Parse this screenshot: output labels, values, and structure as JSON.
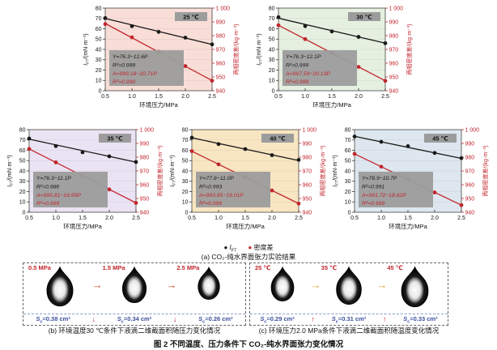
{
  "figure_caption": "图 2  不同温度、压力条件下 CO₂-纯水界面张力变化情况",
  "subfig_a_caption": "(a) CO₂-纯水界面张力实验结果",
  "legend": {
    "items": [
      {
        "marker": "●",
        "color": "#1a1a1a",
        "main": "I",
        "sub": "FT",
        "italic": true
      },
      {
        "marker": "●",
        "color": "#c2262d",
        "main": "密度差",
        "sub": "",
        "italic": false
      }
    ]
  },
  "chart_data": {
    "type": "line",
    "axes": {
      "xlabel": "环境压力/MPa",
      "ylabel_left": {
        "sym": "I",
        "sub": "FT",
        "rest": "/(mN·m⁻¹)"
      },
      "ylabel_right": "两相密度差/(kg·m⁻³)",
      "xlim": [
        0.5,
        2.5
      ],
      "xticks": [
        0.5,
        1.0,
        1.5,
        2.0,
        2.5
      ],
      "ylim_left": [
        0,
        80
      ],
      "yticks_left": [
        0,
        10,
        20,
        30,
        40,
        50,
        60,
        70,
        80
      ],
      "ylim_right": [
        940,
        1000
      ],
      "yticks_right": [
        940,
        950,
        960,
        970,
        980,
        990,
        1000
      ],
      "grid": true,
      "legend_position": "below"
    },
    "charts": [
      {
        "temp": "25 ℃",
        "bg": "#f9ded8",
        "x": [
          0.5,
          1.0,
          1.5,
          2.0,
          2.5
        ],
        "series": [
          {
            "name": "IFT",
            "axis": "left",
            "color": "#1a1a1a",
            "values": [
              70.3,
              62.5,
              57.0,
              51.4,
              44.9
            ],
            "fit": {
              "b": 76.3,
              "m": -12.6
            }
          },
          {
            "name": "密度差",
            "axis": "right",
            "color": "#c2262d",
            "values": [
              988.4,
              978.8,
              968.3,
              957.9,
              947.3
            ],
            "fit": {
              "b": 999.18,
              "m": -20.71
            }
          }
        ],
        "annotation": [
          {
            "text": "Y=76.3−12.6P",
            "color": "black"
          },
          {
            "text": "R²=0.999",
            "color": "black"
          },
          {
            "text": "A=999.18−20.71P",
            "color": "red"
          },
          {
            "text": "R²=0.990",
            "color": "red"
          }
        ]
      },
      {
        "temp": "30 ℃",
        "bg": "#e6f0e1",
        "x": [
          0.5,
          1.0,
          1.5,
          2.0,
          2.5
        ],
        "series": [
          {
            "name": "IFT",
            "axis": "left",
            "color": "#1a1a1a",
            "values": [
              71.2,
              62.6,
              57.4,
              52.1,
              46.0
            ],
            "fit": {
              "b": 76.3,
              "m": -12.1
            }
          },
          {
            "name": "密度差",
            "axis": "right",
            "color": "#c2262d",
            "values": [
              987.5,
              977.5,
              967.4,
              957.3,
              947.2
            ],
            "fit": {
              "b": 997.59,
              "m": -20.13
            }
          }
        ],
        "annotation": [
          {
            "text": "Y=76.3−12.1P",
            "color": "black"
          },
          {
            "text": "R²=0.999",
            "color": "black"
          },
          {
            "text": "A=997.59−20.13P",
            "color": "red"
          },
          {
            "text": "R²=0.999",
            "color": "red"
          }
        ]
      },
      {
        "temp": "35 ℃",
        "bg": "#eae3f3",
        "x": [
          0.5,
          1.0,
          1.5,
          2.0,
          2.5
        ],
        "series": [
          {
            "name": "IFT",
            "axis": "left",
            "color": "#1a1a1a",
            "values": [
              71.4,
              64.1,
              58.1,
              54.2,
              48.7
            ],
            "fit": {
              "b": 76.3,
              "m": -11.1
            }
          },
          {
            "name": "密度差",
            "axis": "right",
            "color": "#c2262d",
            "values": [
              986.0,
              976.2,
              966.4,
              956.6,
              946.8
            ],
            "fit": {
              "b": 995.81,
              "m": -19.59
            }
          }
        ],
        "annotation": [
          {
            "text": "Y=76.3−11.1P",
            "color": "black"
          },
          {
            "text": "R²=0.986",
            "color": "black"
          },
          {
            "text": "A=995.81−19.59P",
            "color": "red"
          },
          {
            "text": "R²=0.999",
            "color": "red"
          }
        ]
      },
      {
        "temp": "40 ℃",
        "bg": "#f8e6c2",
        "x": [
          0.5,
          1.0,
          1.5,
          2.0,
          2.5
        ],
        "series": [
          {
            "name": "IFT",
            "axis": "left",
            "color": "#1a1a1a",
            "values": [
              72.2,
              66.0,
              61.2,
              55.3,
              50.7
            ],
            "fit": {
              "b": 77.6,
              "m": -11.0
            }
          },
          {
            "name": "密度差",
            "axis": "right",
            "color": "#c2262d",
            "values": [
              984.4,
              974.8,
              965.3,
              955.8,
              946.3
            ],
            "fit": {
              "b": 993.85,
              "m": -19.01
            }
          }
        ],
        "annotation": [
          {
            "text": "Y=77.6−11.0P",
            "color": "black"
          },
          {
            "text": "R²=0.993",
            "color": "black"
          },
          {
            "text": "A=993.85−19.01P",
            "color": "red"
          },
          {
            "text": "R²=0.999",
            "color": "red"
          }
        ]
      },
      {
        "temp": "45 ℃",
        "bg": "#dee7ef",
        "x": [
          0.5,
          1.0,
          1.5,
          2.0,
          2.5
        ],
        "series": [
          {
            "name": "IFT",
            "axis": "left",
            "color": "#1a1a1a",
            "values": [
              73.3,
              68.2,
              64.0,
              57.4,
              52.4
            ],
            "fit": {
              "b": 78.9,
              "m": -10.7
            }
          },
          {
            "name": "密度差",
            "axis": "right",
            "color": "#c2262d",
            "values": [
              982.4,
              973.1,
              963.8,
              954.4,
              945.2
            ],
            "fit": {
              "b": 991.72,
              "m": -18.62
            }
          }
        ],
        "annotation": [
          {
            "text": "Y=78.9−10.7P",
            "color": "black"
          },
          {
            "text": "R²=0.991",
            "color": "black"
          },
          {
            "text": "A=991.72−18.62P",
            "color": "red"
          },
          {
            "text": "R²=0.999",
            "color": "red"
          }
        ]
      }
    ]
  },
  "droplet_section": {
    "panel_b": {
      "caption": "(b) 环境温度30 ℃条件下液滴二维截面积随压力变化情况",
      "arrow_color": "#cf4a28",
      "trend_arrow": "↓",
      "items": [
        {
          "condition": "0.5 MPa",
          "area_sym": "S",
          "area_sub": "c",
          "area_value": "0.38 cm²"
        },
        {
          "condition": "1.5 MPa",
          "area_sym": "S",
          "area_sub": "c",
          "area_value": "0.34 cm²"
        },
        {
          "condition": "2.5 MPa",
          "area_sym": "S",
          "area_sub": "c",
          "area_value": "0.26 cm²"
        }
      ]
    },
    "panel_c": {
      "caption": "(c) 环境压力2.0 MPa条件下液滴二维截面积随温度变化情况",
      "arrow_color": "#dfa03a",
      "trend_arrow": "↑",
      "items": [
        {
          "condition": "25 ℃",
          "area_sym": "S",
          "area_sub": "c",
          "area_value": "0.29 cm²"
        },
        {
          "condition": "35 ℃",
          "area_sym": "S",
          "area_sub": "c",
          "area_value": "0.31 cm²"
        },
        {
          "condition": "45 ℃",
          "area_sym": "S",
          "area_sub": "c",
          "area_value": "0.33 cm²"
        }
      ]
    }
  },
  "colors": {
    "series_black": "#1a1a1a",
    "series_red": "#c2262d",
    "annotation_box": "#9c9c9c",
    "area_label_blue": "#3c4f9e"
  }
}
